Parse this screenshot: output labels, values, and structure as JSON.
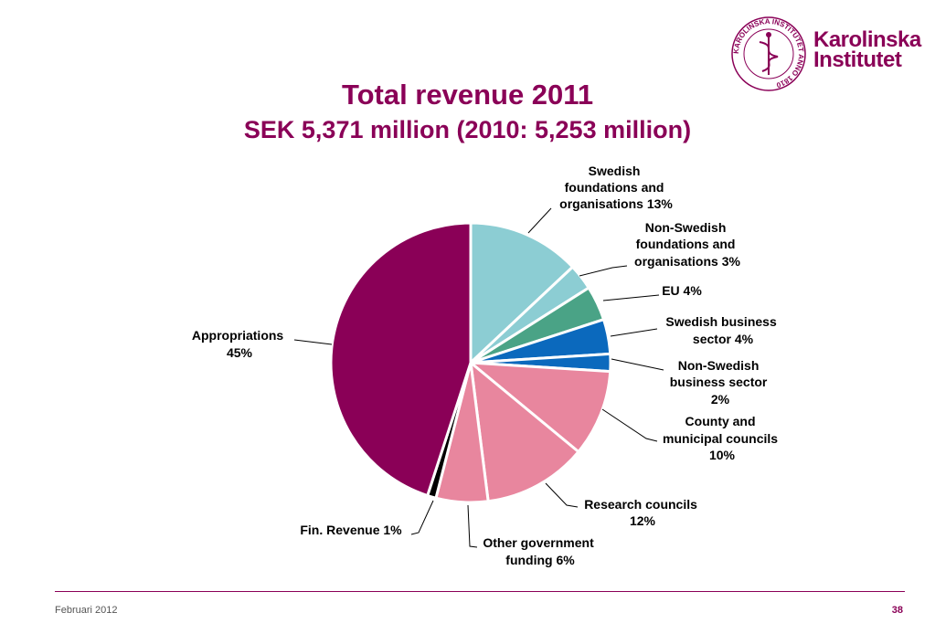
{
  "header": {
    "title": "Total revenue 2011",
    "subtitle": "SEK 5,371 million (2010: 5,253 million)"
  },
  "logo": {
    "line1": "Karolinska",
    "line2": "Institutet",
    "seal_text": "KAROLINSKA INSTITUTET ANNO 1810",
    "color": "#8a0057"
  },
  "footer": {
    "date": "Februari 2012",
    "page": "38"
  },
  "chart_data": {
    "type": "pie",
    "start_angle_deg": 0,
    "direction": "clockwise",
    "slices": [
      {
        "label": [
          "Swedish",
          "foundations and",
          "organisations 13%"
        ],
        "value": 13,
        "color": "#8ccdd3"
      },
      {
        "label": [
          "Non-Swedish",
          "foundations and",
          "organisations 3%"
        ],
        "value": 3,
        "color": "#8ccdd3"
      },
      {
        "label": [
          "EU 4%"
        ],
        "value": 4,
        "color": "#4aa386"
      },
      {
        "label": [
          "Swedish business",
          "sector 4%"
        ],
        "value": 4,
        "color": "#0b69bd"
      },
      {
        "label": [
          "Non-Swedish",
          "business sector",
          "2%"
        ],
        "value": 2,
        "color": "#0b69bd"
      },
      {
        "label": [
          "County and",
          "municipal councils",
          "10%"
        ],
        "value": 10,
        "color": "#e8869e"
      },
      {
        "label": [
          "Research councils",
          "12%"
        ],
        "value": 12,
        "color": "#e8869e"
      },
      {
        "label": [
          "Other government",
          "funding 6%"
        ],
        "value": 6,
        "color": "#e8869e"
      },
      {
        "label": [
          "Fin. Revenue 1%"
        ],
        "value": 1,
        "color": "#000000"
      },
      {
        "label": [
          "Appropriations",
          "45%"
        ],
        "value": 45,
        "color": "#8a0057"
      }
    ]
  }
}
